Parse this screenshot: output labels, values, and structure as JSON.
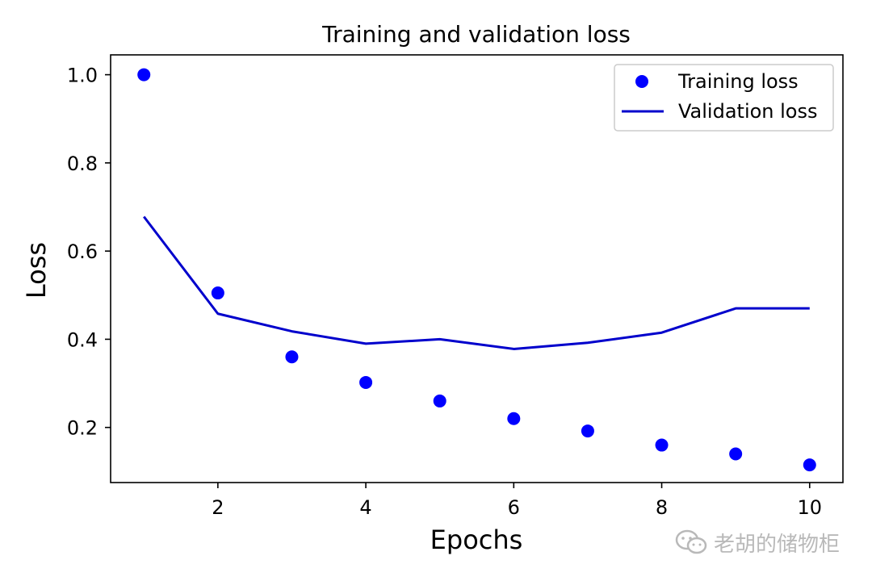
{
  "chart_data": {
    "type": "scatter+line",
    "title": "Training and validation loss",
    "xlabel": "Epochs",
    "ylabel": "Loss",
    "xlim": [
      0.55,
      10.45
    ],
    "ylim": [
      0.075,
      1.045
    ],
    "xticks": [
      2,
      4,
      6,
      8,
      10
    ],
    "yticks": [
      0.2,
      0.4,
      0.6,
      0.8,
      1.0
    ],
    "xtick_labels": [
      "2",
      "4",
      "6",
      "8",
      "10"
    ],
    "ytick_labels": [
      "0.2",
      "0.4",
      "0.6",
      "0.8",
      "1.0"
    ],
    "grid": false,
    "legend_position": "top-right",
    "series": [
      {
        "name": "Training loss",
        "style": "markers",
        "color": "#0000ff",
        "x": [
          1,
          2,
          3,
          4,
          5,
          6,
          7,
          8,
          9,
          10
        ],
        "y": [
          1.0,
          0.505,
          0.36,
          0.302,
          0.26,
          0.22,
          0.192,
          0.16,
          0.14,
          0.115
        ]
      },
      {
        "name": "Validation loss",
        "style": "line",
        "color": "#0000cc",
        "x": [
          1,
          2,
          3,
          4,
          5,
          6,
          7,
          8,
          9,
          10
        ],
        "y": [
          0.678,
          0.458,
          0.418,
          0.39,
          0.4,
          0.378,
          0.392,
          0.415,
          0.47,
          0.47
        ]
      }
    ]
  },
  "watermark": {
    "icon": "wechat-icon",
    "text": "老胡的储物柜"
  }
}
